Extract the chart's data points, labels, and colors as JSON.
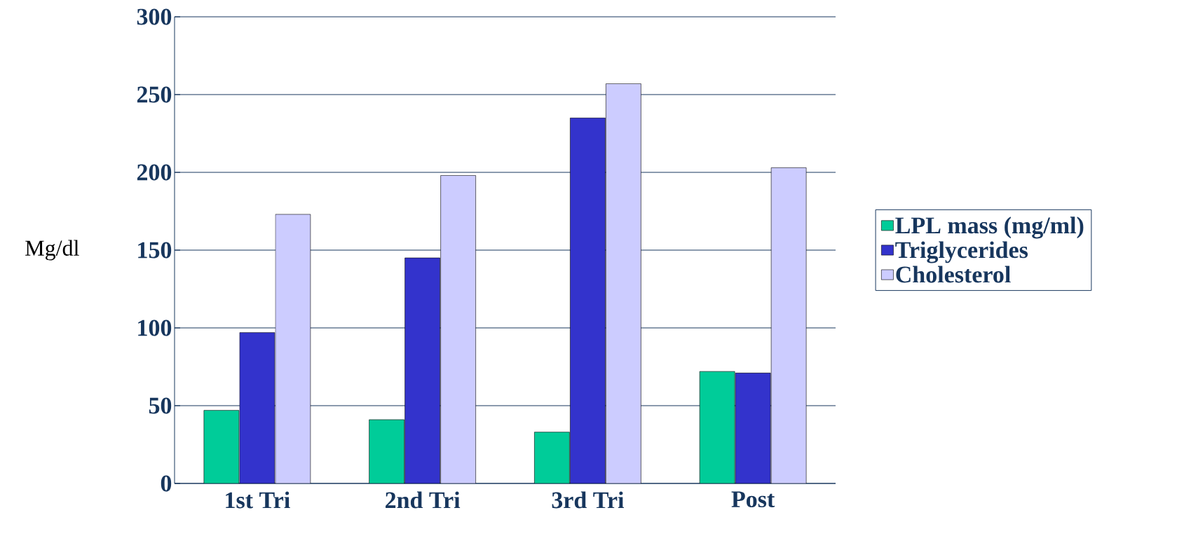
{
  "chart_data": {
    "type": "bar",
    "ylabel": "Mg/dl",
    "categories": [
      "1st Tri",
      "2nd Tri",
      "3rd Tri",
      "Post"
    ],
    "series": [
      {
        "name": "LPL mass (mg/ml)",
        "color": "#00cc99",
        "values": [
          47,
          41,
          33,
          72
        ]
      },
      {
        "name": "Triglycerides",
        "color": "#3333cc",
        "values": [
          97,
          145,
          235,
          71
        ]
      },
      {
        "name": "Cholesterol",
        "color": "#ccccff",
        "values": [
          173,
          198,
          257,
          203
        ]
      }
    ],
    "ylim": [
      0,
      300
    ],
    "yticks": [
      0,
      50,
      100,
      150,
      200,
      250,
      300
    ],
    "grid": "y",
    "legend": "right"
  }
}
